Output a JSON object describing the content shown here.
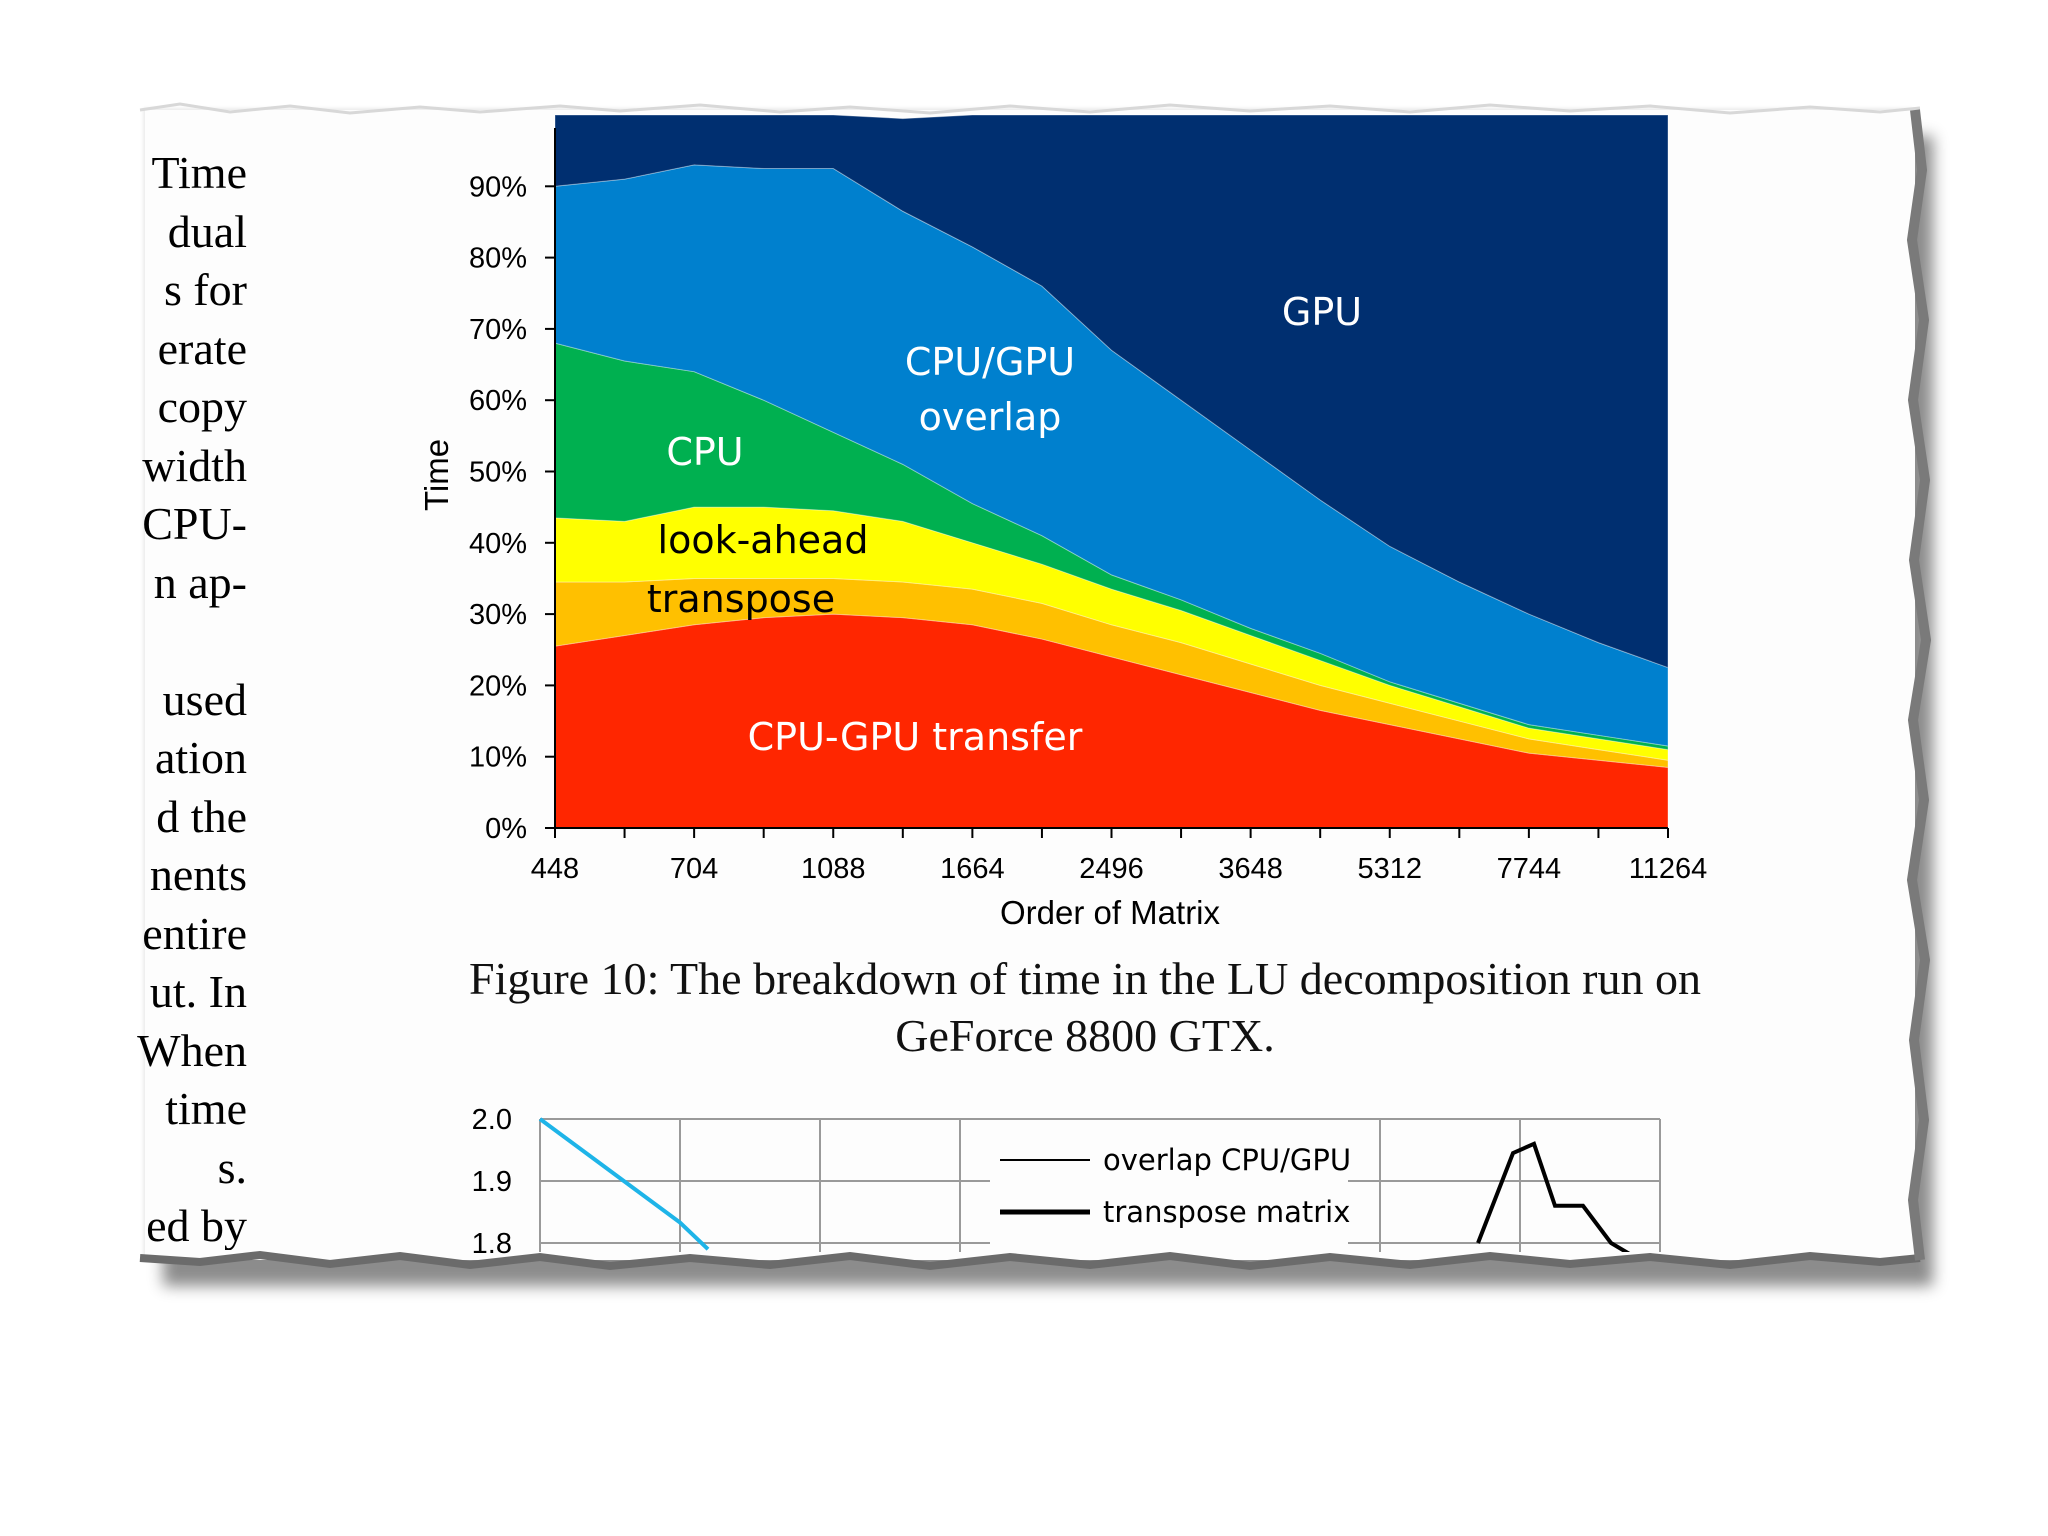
{
  "side_text": [
    "Time",
    "dual",
    "s for",
    "erate",
    "copy",
    "width",
    "CPU-",
    "n ap-",
    "",
    "used",
    "ation",
    "d the",
    "nents",
    "entire",
    "ut. In",
    "When",
    "time",
    "s.",
    "ed by"
  ],
  "caption": {
    "line1": "Figure 10: The breakdown of time in the LU decomposition run on",
    "line2": "GeForce 8800 GTX."
  },
  "colors": {
    "transfer": "#ff2600",
    "transpose": "#ffc000",
    "lookahead": "#ffff00",
    "cpu": "#00b050",
    "overlap": "#0080ce",
    "gpu": "#002f70",
    "light_line": "#1eb4e8"
  },
  "chart_data": [
    {
      "type": "area",
      "stacked": true,
      "normalized": true,
      "title": "",
      "xlabel": "Order of Matrix",
      "ylabel": "Time",
      "x_tick_labels": [
        "448",
        "704",
        "1088",
        "1664",
        "2496",
        "3648",
        "5312",
        "7744",
        "11264"
      ],
      "y_tick_labels": [
        "0%",
        "10%",
        "20%",
        "30%",
        "40%",
        "50%",
        "60%",
        "70%",
        "80%",
        "90%"
      ],
      "ylim": [
        0,
        100
      ],
      "x": [
        448,
        576,
        704,
        896,
        1088,
        1344,
        1664,
        2048,
        2496,
        3072,
        3648,
        4480,
        5312,
        6528,
        7744,
        9504,
        11264
      ],
      "series": [
        {
          "name": "CPU-GPU transfer",
          "values": [
            25.5,
            27,
            28.5,
            29.5,
            30,
            29.5,
            28.5,
            26.5,
            24,
            21.5,
            19,
            16.5,
            14.5,
            12.5,
            10.5,
            9.5,
            8.5
          ]
        },
        {
          "name": "transpose",
          "values": [
            9,
            7.5,
            6.5,
            5.5,
            5,
            5,
            5,
            5,
            4.5,
            4.5,
            4,
            3.5,
            3,
            2.5,
            2,
            1.5,
            1
          ]
        },
        {
          "name": "look-ahead",
          "values": [
            9,
            8.5,
            10,
            10,
            9.5,
            8.5,
            6.5,
            5.5,
            5,
            4.5,
            4,
            3.5,
            2.5,
            2,
            1.5,
            1.5,
            1.5
          ]
        },
        {
          "name": "CPU",
          "values": [
            24.5,
            22.5,
            19,
            15,
            11,
            8,
            5.5,
            4,
            2,
            1.5,
            1,
            1,
            0.5,
            0.5,
            0.5,
            0.5,
            0.5
          ]
        },
        {
          "name": "CPU/GPU overlap",
          "values": [
            22,
            25.5,
            29,
            32.5,
            37,
            35.5,
            36,
            35,
            31.5,
            28,
            25,
            21.5,
            19,
            17,
            15.5,
            13,
            11
          ]
        },
        {
          "name": "GPU",
          "values": [
            10,
            9,
            7,
            7.5,
            7.5,
            13,
            18.5,
            24,
            33,
            40,
            47,
            54,
            60.5,
            65.5,
            70,
            74,
            77.5
          ]
        }
      ],
      "labels": {
        "gpu": "GPU",
        "overlap_line1": "CPU/GPU",
        "overlap_line2": "overlap",
        "cpu": "CPU",
        "lookahead": "look-ahead",
        "transpose": "transpose",
        "transfer": "CPU-GPU transfer"
      }
    },
    {
      "type": "line",
      "title": "",
      "y_tick_labels": [
        "2.0",
        "1.9",
        "1.8"
      ],
      "ylim": [
        1.8,
        2.0
      ],
      "legend": [
        "overlap CPU/GPU",
        "transpose matrix"
      ],
      "series": [
        {
          "name": "light-blue",
          "x": [
            0,
            1,
            1.2
          ],
          "y": [
            2.0,
            1.833,
            1.79
          ]
        },
        {
          "name": "transpose matrix",
          "x": [
            6.7,
            6.95,
            7.1,
            7.25,
            7.45,
            7.65,
            7.8
          ],
          "y": [
            1.8,
            1.945,
            1.96,
            1.86,
            1.86,
            1.8,
            1.78
          ]
        }
      ]
    }
  ]
}
